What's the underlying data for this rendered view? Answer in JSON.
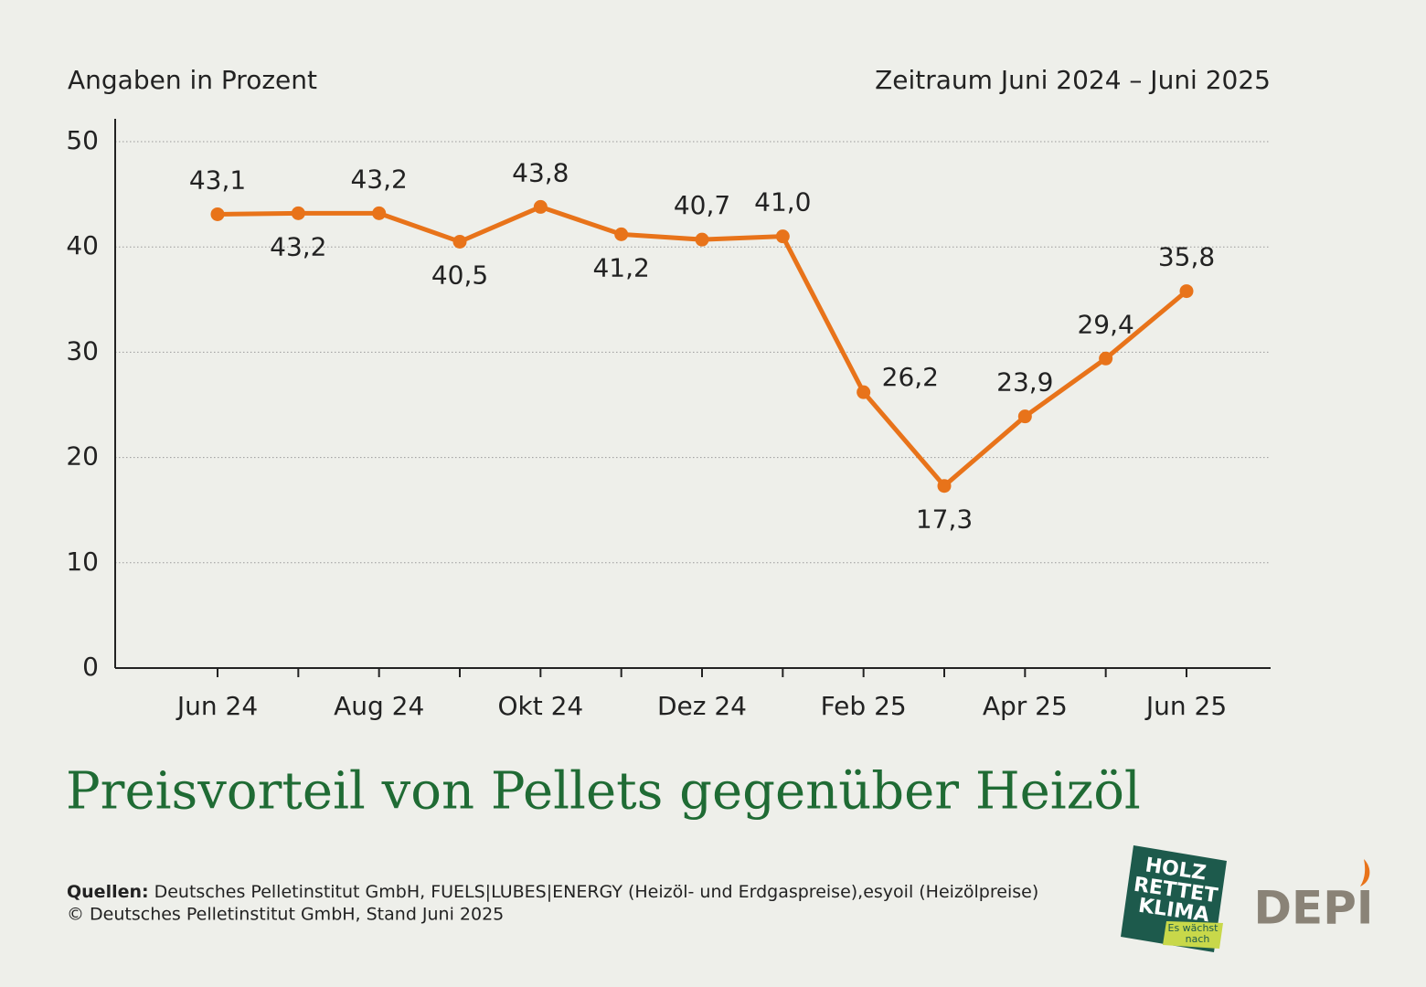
{
  "chart_data": {
    "type": "line",
    "title": "Preisvorteil von Pellets gegenüber Heizöl",
    "y_label": "Angaben in Prozent",
    "subtitle": "Zeitraum Juni 2024 – Juni 2025",
    "categories": [
      "Jun 24",
      null,
      "Aug 24",
      null,
      "Okt 24",
      null,
      "Dez 24",
      null,
      "Feb 25",
      null,
      "Apr 25",
      null,
      "Jun 25"
    ],
    "series": [
      {
        "name": "Preisvorteil",
        "color": "#e8731a",
        "values": [
          43.1,
          43.2,
          43.2,
          40.5,
          43.8,
          41.2,
          40.7,
          41.0,
          26.2,
          17.3,
          23.9,
          29.4,
          35.8
        ],
        "value_labels": [
          "43,1",
          "43,2",
          "43,2",
          "40,5",
          "43,8",
          "41,2",
          "40,7",
          "41,0",
          "26,2",
          "17,3",
          "23,9",
          "29,4",
          "35,8"
        ]
      }
    ],
    "ylim": [
      0,
      50
    ],
    "yticks": [
      0,
      10,
      20,
      30,
      40,
      50
    ],
    "grid": true
  },
  "source": {
    "label": "Quellen:",
    "text": "Deutsches Pelletinstitut GmbH, FUELS|LUBES|ENERGY (Heizöl- und Erdgaspreise),esyoil (Heizölpreise)",
    "copyright": "© Deutsches Pelletinstitut GmbH, Stand Juni 2025"
  },
  "logos": {
    "holz": [
      "HOLZ",
      "RETTET",
      "KLIMA"
    ],
    "tagline": [
      "Es wächst",
      "nach"
    ],
    "depi": "DEPI"
  }
}
